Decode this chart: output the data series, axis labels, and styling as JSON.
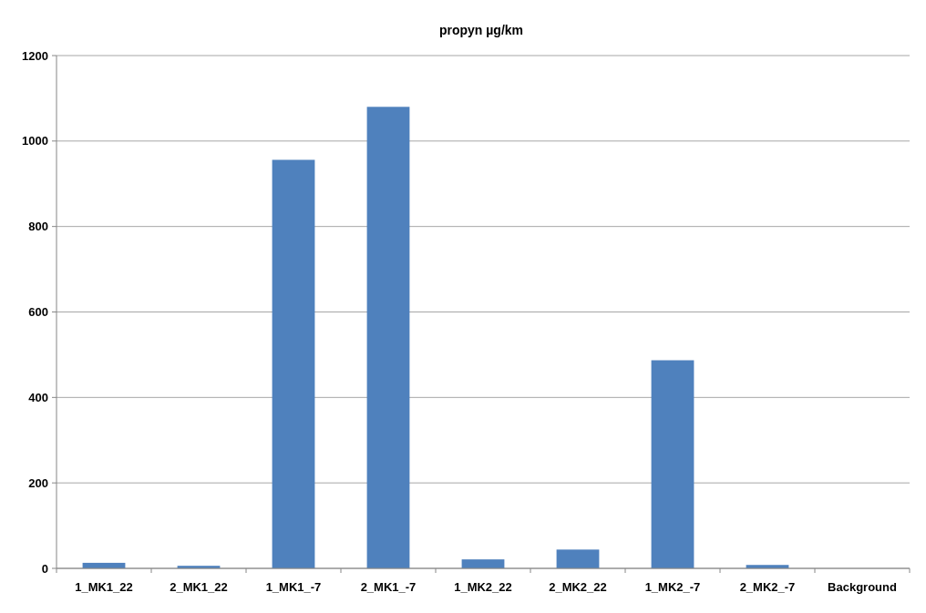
{
  "chart_data": {
    "type": "bar",
    "title": "propyn µg/km",
    "categories": [
      "1_MK1_22",
      "2_MK1_22",
      "1_MK1_-7",
      "2_MK1_-7",
      "1_MK2_22",
      "2_MK2_22",
      "1_MK2_-7",
      "2_MK2_-7",
      "Background"
    ],
    "values": [
      13,
      6,
      956,
      1080,
      21,
      44,
      487,
      8,
      0
    ],
    "color": "#4f81bd",
    "ylim": [
      0,
      1200
    ],
    "yticks": [
      0,
      200,
      400,
      600,
      800,
      1000,
      1200
    ],
    "grid": "y"
  }
}
